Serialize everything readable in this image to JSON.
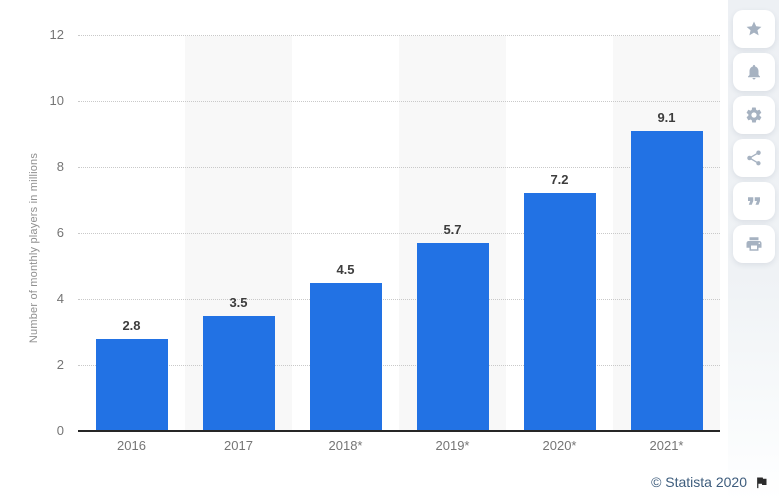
{
  "chart_data": {
    "type": "bar",
    "title": "",
    "categories": [
      "2016",
      "2017",
      "2018*",
      "2019*",
      "2020*",
      "2021*"
    ],
    "values": [
      2.8,
      3.5,
      4.5,
      5.7,
      7.2,
      9.1
    ],
    "xlabel": "",
    "ylabel": "Number of monthly players in millions",
    "ylim": [
      0,
      12
    ],
    "yticks": [
      0,
      2,
      4,
      6,
      8,
      10,
      12
    ],
    "grid": "horizontal-dotted",
    "legend": "none",
    "alt_column_stripes": true
  },
  "toolbar": {
    "buttons": [
      {
        "icon": "star-icon",
        "label": "favorite"
      },
      {
        "icon": "bell-icon",
        "label": "alerts"
      },
      {
        "icon": "gear-icon",
        "label": "settings"
      },
      {
        "icon": "share-icon",
        "label": "share"
      },
      {
        "icon": "quote-icon",
        "label": "cite"
      },
      {
        "icon": "print-icon",
        "label": "print"
      }
    ]
  },
  "footer": {
    "copyright": "© Statista 2020",
    "flag_icon": "flag-icon"
  },
  "colors": {
    "bar": "#2272e4",
    "value_label": "#3d3d3d",
    "tick_label": "#757575",
    "axis_title": "#8f8f8f",
    "gridline": "#c9c9c9",
    "baseline": "#262626",
    "column_stripe": "#f8f8f8",
    "sidebar_band": "#eef1f4",
    "toolbar_icon": "#a6b2c1",
    "copyright_text": "#3e5d7d"
  }
}
